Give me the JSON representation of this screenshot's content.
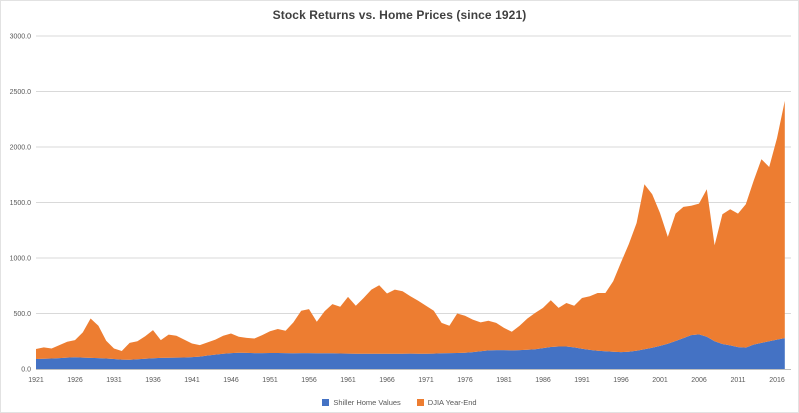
{
  "chart_data": {
    "type": "area",
    "stacked": true,
    "title": "Stock Returns vs. Home Prices (since 1921)",
    "xlabel": "",
    "ylabel": "",
    "ylim": [
      0,
      3000
    ],
    "y_tick_step": 500,
    "grid": "horizontal",
    "legend_position": "bottom",
    "x": [
      1921,
      1922,
      1923,
      1924,
      1925,
      1926,
      1927,
      1928,
      1929,
      1930,
      1931,
      1932,
      1933,
      1934,
      1935,
      1936,
      1937,
      1938,
      1939,
      1940,
      1941,
      1942,
      1943,
      1944,
      1945,
      1946,
      1947,
      1948,
      1949,
      1950,
      1951,
      1952,
      1953,
      1954,
      1955,
      1956,
      1957,
      1958,
      1959,
      1960,
      1961,
      1962,
      1963,
      1964,
      1965,
      1966,
      1967,
      1968,
      1969,
      1970,
      1971,
      1972,
      1973,
      1974,
      1975,
      1976,
      1977,
      1978,
      1979,
      1980,
      1981,
      1982,
      1983,
      1984,
      1985,
      1986,
      1987,
      1988,
      1989,
      1990,
      1991,
      1992,
      1993,
      1994,
      1995,
      1996,
      1997,
      1998,
      1999,
      2000,
      2001,
      2002,
      2003,
      2004,
      2005,
      2006,
      2007,
      2008,
      2009,
      2010,
      2011,
      2012,
      2013,
      2014,
      2015,
      2016,
      2017
    ],
    "series": [
      {
        "name": "Shiller Home Values",
        "color": "#4472C4",
        "values": [
          90,
          92,
          95,
          98,
          103,
          105,
          103,
          100,
          98,
          95,
          90,
          85,
          83,
          88,
          92,
          96,
          100,
          102,
          103,
          104,
          107,
          112,
          122,
          130,
          137,
          143,
          146,
          145,
          143,
          143,
          144,
          144,
          143,
          142,
          143,
          143,
          142,
          141,
          141,
          140,
          139,
          138,
          138,
          138,
          138,
          137,
          137,
          138,
          139,
          138,
          138,
          139,
          141,
          143,
          144,
          146,
          152,
          160,
          168,
          170,
          170,
          168,
          170,
          173,
          178,
          188,
          198,
          203,
          203,
          195,
          183,
          172,
          165,
          160,
          155,
          152,
          155,
          165,
          178,
          192,
          208,
          228,
          252,
          278,
          305,
          312,
          290,
          250,
          225,
          213,
          197,
          193,
          220,
          235,
          250,
          265,
          278
        ]
      },
      {
        "name": "DJIA Year-End",
        "color": "#ED7D31",
        "values": [
          90,
          103,
          90,
          117,
          142,
          155,
          227,
          355,
          292,
          160,
          95,
          77,
          152,
          162,
          203,
          254,
          160,
          208,
          197,
          161,
          123,
          103,
          118,
          135,
          163,
          177,
          144,
          135,
          132,
          162,
          196,
          216,
          202,
          278,
          382,
          397,
          283,
          379,
          444,
          420,
          511,
          432,
          502,
          577,
          617,
          543,
          578,
          562,
          516,
          477,
          432,
          386,
          274,
          247,
          356,
          334,
          293,
          260,
          267,
          245,
          200,
          167,
          220,
          282,
          327,
          362,
          422,
          347,
          392,
          375,
          457,
          483,
          520,
          525,
          635,
          808,
          970,
          1150,
          1487,
          1383,
          1197,
          962,
          1148,
          1182,
          1165,
          1178,
          1330,
          865,
          1170,
          1227,
          1203,
          1292,
          1475,
          1655,
          1570,
          1815,
          2137
        ]
      }
    ],
    "y_tick_labels": [
      "0.0",
      "500.0",
      "1000.0",
      "1500.0",
      "2000.0",
      "2500.0",
      "3000.0"
    ],
    "x_tick_labels": [
      "1921",
      "1926",
      "1931",
      "1936",
      "1941",
      "1946",
      "1951",
      "1956",
      "1961",
      "1966",
      "1971",
      "1976",
      "1981",
      "1986",
      "1991",
      "1996",
      "2001",
      "2006",
      "2011",
      "2016"
    ],
    "colors": {
      "gridline": "#d9d9d9",
      "axis_line": "#bfbfbf",
      "tick_text": "#595959",
      "title_text": "#404040"
    }
  }
}
